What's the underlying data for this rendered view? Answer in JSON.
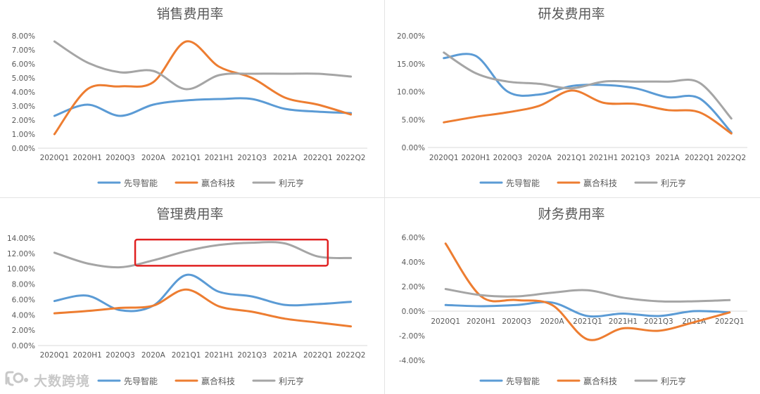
{
  "colors": {
    "s1": "#5b9bd5",
    "s2": "#ed7d31",
    "s3": "#a5a5a5",
    "highlight": "#e02020",
    "axis": "#595959",
    "title": "#595959"
  },
  "watermark": {
    "text": "大数跨境"
  },
  "chart_data": [
    {
      "type": "line",
      "title": "销售费用率",
      "categories": [
        "2020Q1",
        "2020H1",
        "2020Q3",
        "2020A",
        "2021Q1",
        "2021H1",
        "2021Q3",
        "2021A",
        "2022Q1",
        "2022Q2"
      ],
      "ylim": [
        0,
        8
      ],
      "yticks": [
        0,
        1,
        2,
        3,
        4,
        5,
        6,
        7,
        8
      ],
      "ytick_labels": [
        "0.00%",
        "1.00%",
        "2.00%",
        "3.00%",
        "4.00%",
        "5.00%",
        "6.00%",
        "7.00%",
        "8.00%"
      ],
      "series": [
        {
          "name": "先导智能",
          "color_key": "s1",
          "values": [
            2.3,
            3.1,
            2.3,
            3.1,
            3.4,
            3.5,
            3.5,
            2.8,
            2.6,
            2.5
          ]
        },
        {
          "name": "赢合科技",
          "color_key": "s2",
          "values": [
            1.0,
            4.2,
            4.4,
            4.7,
            7.6,
            5.8,
            5.0,
            3.6,
            3.1,
            2.4
          ]
        },
        {
          "name": "利元亨",
          "color_key": "s3",
          "values": [
            7.6,
            6.1,
            5.4,
            5.5,
            4.2,
            5.2,
            5.3,
            5.3,
            5.3,
            5.1
          ]
        }
      ]
    },
    {
      "type": "line",
      "title": "研发费用率",
      "categories": [
        "2020Q1",
        "2020H1",
        "2020Q3",
        "2020A",
        "2021Q1",
        "2021H1",
        "2021Q3",
        "2021A",
        "2022Q1",
        "2022Q2"
      ],
      "ylim": [
        0,
        20
      ],
      "yticks": [
        0,
        5,
        10,
        15,
        20
      ],
      "ytick_labels": [
        "0.00%",
        "5.00%",
        "10.00%",
        "15.00%",
        "20.00%"
      ],
      "series": [
        {
          "name": "先导智能",
          "color_key": "s1",
          "values": [
            16.0,
            16.4,
            10.0,
            9.5,
            11.0,
            11.2,
            10.6,
            9.0,
            8.8,
            2.7
          ]
        },
        {
          "name": "赢合科技",
          "color_key": "s2",
          "values": [
            4.5,
            5.5,
            6.3,
            7.5,
            10.2,
            8.0,
            7.8,
            6.7,
            6.3,
            2.5
          ]
        },
        {
          "name": "利元亨",
          "color_key": "s3",
          "values": [
            17.0,
            13.3,
            11.8,
            11.4,
            10.6,
            11.8,
            11.8,
            11.8,
            11.6,
            5.2
          ]
        }
      ]
    },
    {
      "type": "line",
      "title": "管理费用率",
      "categories": [
        "2020Q1",
        "2020H1",
        "2020Q3",
        "2020A",
        "2021Q1",
        "2021H1",
        "2021Q3",
        "2021A",
        "2022Q1",
        "2022Q2"
      ],
      "ylim": [
        0,
        14
      ],
      "yticks": [
        0,
        2,
        4,
        6,
        8,
        10,
        12,
        14
      ],
      "ytick_labels": [
        "0.00%",
        "2.00%",
        "4.00%",
        "6.00%",
        "8.00%",
        "10.00%",
        "12.00%",
        "14.00%"
      ],
      "highlight": {
        "from_category": 3,
        "to_category": 8,
        "y_low": 10.4,
        "y_high": 13.8
      },
      "series": [
        {
          "name": "先导智能",
          "color_key": "s1",
          "values": [
            5.8,
            6.5,
            4.6,
            5.2,
            9.2,
            7.0,
            6.4,
            5.3,
            5.4,
            5.7
          ]
        },
        {
          "name": "赢合科技",
          "color_key": "s2",
          "values": [
            4.2,
            4.5,
            4.9,
            5.2,
            7.3,
            5.1,
            4.4,
            3.5,
            3.0,
            2.5
          ]
        },
        {
          "name": "利元亨",
          "color_key": "s3",
          "values": [
            12.1,
            10.7,
            10.2,
            11.1,
            12.3,
            13.1,
            13.4,
            13.3,
            11.6,
            11.4
          ]
        }
      ]
    },
    {
      "type": "line",
      "title": "财务费用率",
      "categories": [
        "2020Q1",
        "2020H1",
        "2020Q3",
        "2020A",
        "2021Q1",
        "2021H1",
        "2021Q3",
        "2021A",
        "2022Q1"
      ],
      "ylim": [
        -4,
        6
      ],
      "yticks": [
        -4,
        -2,
        0,
        2,
        4,
        6
      ],
      "ytick_labels": [
        "-4.00%",
        "-2.00%",
        "0.00%",
        "2.00%",
        "4.00%",
        "6.00%"
      ],
      "series": [
        {
          "name": "先导智能",
          "color_key": "s1",
          "values": [
            0.5,
            0.4,
            0.5,
            0.7,
            -0.4,
            -0.2,
            -0.4,
            0.0,
            -0.1
          ]
        },
        {
          "name": "赢合科技",
          "color_key": "s2",
          "values": [
            5.5,
            1.2,
            0.9,
            0.5,
            -2.3,
            -1.4,
            -1.6,
            -0.9,
            -0.1
          ]
        },
        {
          "name": "利元亨",
          "color_key": "s3",
          "values": [
            1.8,
            1.3,
            1.2,
            1.5,
            1.7,
            1.1,
            0.8,
            0.8,
            0.9
          ]
        }
      ]
    }
  ]
}
